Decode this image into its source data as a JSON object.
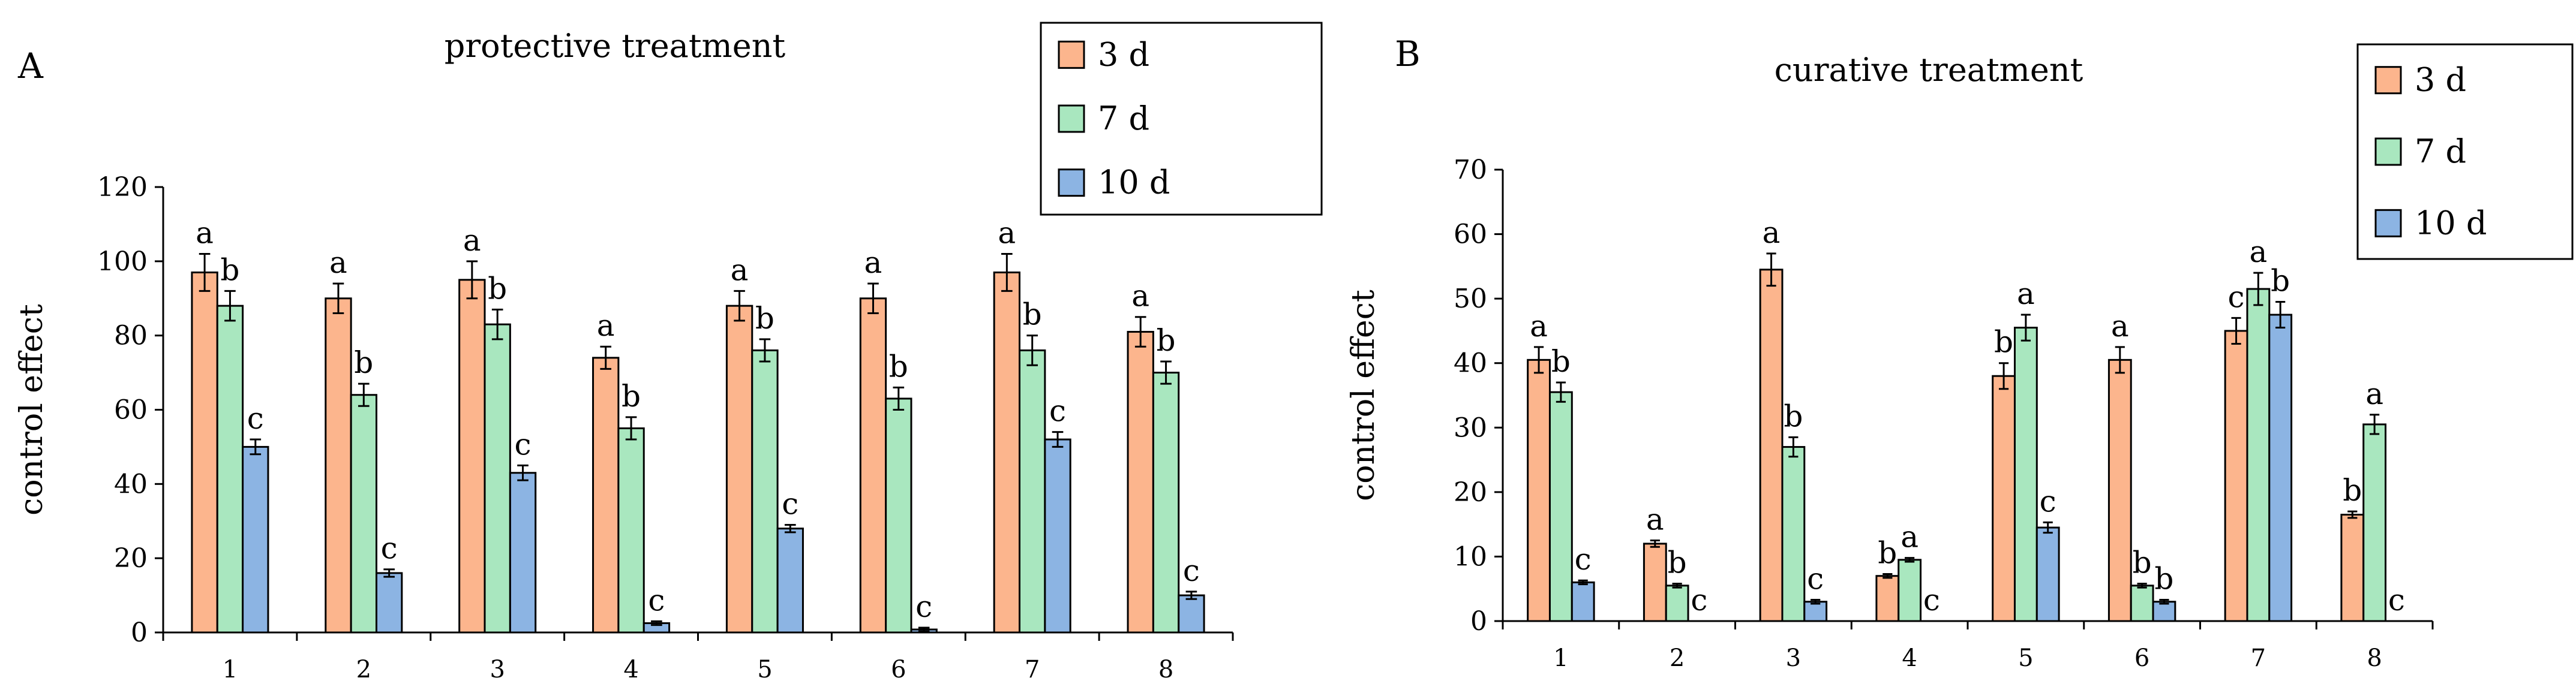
{
  "series_colors": [
    "#FCB58D",
    "#A9E7BF",
    "#8CB4E3"
  ],
  "chart_data": [
    {
      "type": "bar",
      "panel": "A",
      "title": "protective treatment",
      "xlabel": "",
      "ylabel": "control effect",
      "ylim": [
        0,
        120
      ],
      "yticks": [
        0,
        20,
        40,
        60,
        80,
        100,
        120
      ],
      "categories": [
        "1",
        "2",
        "3",
        "4",
        "5",
        "6",
        "7",
        "8"
      ],
      "legend_position": "top-right",
      "series": [
        {
          "name": "3 d",
          "values": [
            97,
            90,
            95,
            74,
            88,
            90,
            97,
            81
          ],
          "errors": [
            5,
            4,
            5,
            3,
            4,
            4,
            5,
            4
          ],
          "letters": [
            "a",
            "a",
            "a",
            "a",
            "a",
            "a",
            "a",
            "a"
          ]
        },
        {
          "name": "7 d",
          "values": [
            88,
            64,
            83,
            55,
            76,
            63,
            76,
            70
          ],
          "errors": [
            4,
            3,
            4,
            3,
            3,
            3,
            4,
            3
          ],
          "letters": [
            "b",
            "b",
            "b",
            "b",
            "b",
            "b",
            "b",
            "b"
          ]
        },
        {
          "name": "10 d",
          "values": [
            50,
            16,
            43,
            2.5,
            28,
            0.8,
            52,
            10
          ],
          "errors": [
            2,
            1,
            2,
            0.5,
            1,
            0.5,
            2,
            1
          ],
          "letters": [
            "c",
            "c",
            "c",
            "c",
            "c",
            "c",
            "c",
            "c"
          ]
        }
      ]
    },
    {
      "type": "bar",
      "panel": "B",
      "title": "curative treatment",
      "xlabel": "",
      "ylabel": "control effect",
      "ylim": [
        0,
        70
      ],
      "yticks": [
        0,
        10,
        20,
        30,
        40,
        50,
        60,
        70
      ],
      "categories": [
        "1",
        "2",
        "3",
        "4",
        "5",
        "6",
        "7",
        "8"
      ],
      "legend_position": "top-right",
      "series": [
        {
          "name": "3 d",
          "values": [
            40.5,
            12,
            54.5,
            7,
            38,
            40.5,
            45,
            16.5
          ],
          "errors": [
            2,
            0.5,
            2.5,
            0.3,
            2,
            2,
            2,
            0.5
          ],
          "letters": [
            "a",
            "a",
            "a",
            "b",
            "b",
            "a",
            "c",
            "b"
          ]
        },
        {
          "name": "7 d",
          "values": [
            35.5,
            5.5,
            27,
            9.5,
            45.5,
            5.5,
            51.5,
            30.5
          ],
          "errors": [
            1.5,
            0.3,
            1.5,
            0.3,
            2,
            0.3,
            2.5,
            1.5
          ],
          "letters": [
            "b",
            "b",
            "b",
            "a",
            "a",
            "b",
            "a",
            "a"
          ]
        },
        {
          "name": "10 d",
          "values": [
            6,
            0,
            3,
            0,
            14.5,
            3,
            47.5,
            0
          ],
          "errors": [
            0.3,
            0,
            0.3,
            0,
            0.8,
            0.3,
            2,
            0
          ],
          "letters": [
            "c",
            "c",
            "c",
            "c",
            "c",
            "b",
            "b",
            "c"
          ]
        }
      ]
    }
  ]
}
